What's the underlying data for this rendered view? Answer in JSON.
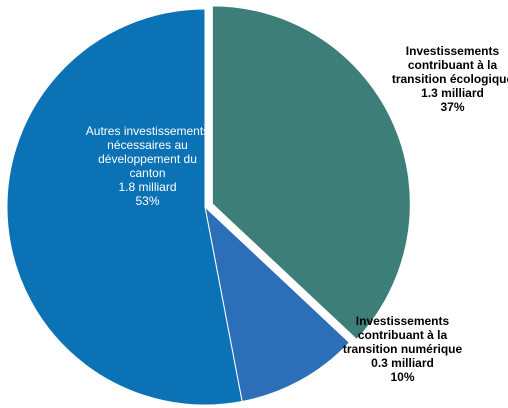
{
  "chart_data": {
    "type": "pie",
    "categories": [
      "Investissements contribuant à la transition écologique",
      "Investissements contribuant à la transition numérique",
      "Autres investissements nécessaires au développement du canton"
    ],
    "amounts": [
      "1.3 milliard",
      "0.3 milliard",
      "1.8 milliard"
    ],
    "values": [
      37,
      10,
      53
    ],
    "value_labels": [
      "37%",
      "10%",
      "53%"
    ],
    "colors": [
      "#3d7f78",
      "#2c6fb8",
      "#0b72b5"
    ],
    "exploded": [
      true,
      false,
      false
    ]
  }
}
